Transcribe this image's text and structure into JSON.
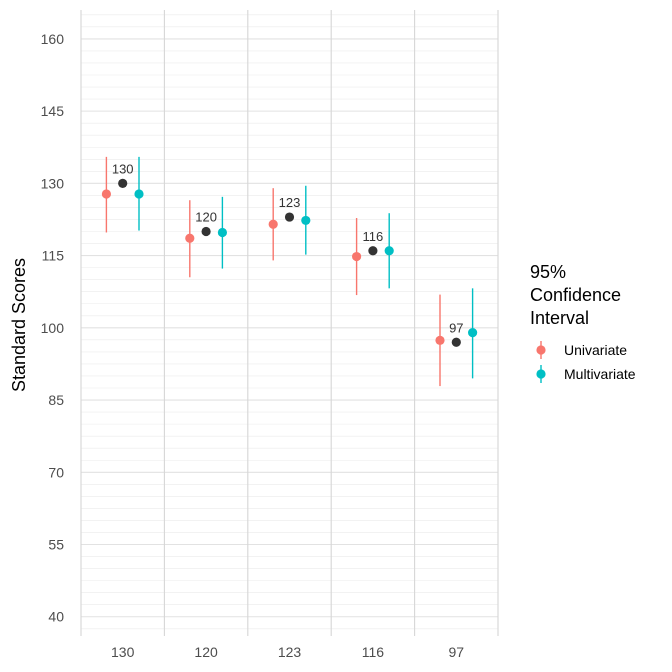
{
  "chart_data": {
    "type": "scatter",
    "title": "",
    "xlabel": "",
    "ylabel": "Standard Scores",
    "ylim": [
      36,
      166
    ],
    "y_ticks": [
      "40",
      "55",
      "70",
      "85",
      "100",
      "115",
      "130",
      "145",
      "160"
    ],
    "y_minor_grid_step": 2.5,
    "categories": [
      "130",
      "120",
      "123",
      "116",
      "97"
    ],
    "grid": true,
    "legend": {
      "title_lines": [
        "95%",
        "Confidence",
        "Interval"
      ],
      "placement": "right",
      "entries": [
        "Univariate",
        "Multivariate"
      ]
    },
    "observed": {
      "color": "#333333",
      "values": [
        130,
        120,
        123,
        116,
        97
      ],
      "labels": [
        "130",
        "120",
        "123",
        "116",
        "97"
      ]
    },
    "series": [
      {
        "name": "Univariate",
        "color": "#F8766D",
        "values": [
          127.8,
          118.6,
          121.5,
          114.8,
          97.4
        ],
        "lower": [
          119.8,
          110.5,
          114.0,
          106.8,
          87.9
        ],
        "upper": [
          135.5,
          126.5,
          129.0,
          122.8,
          106.9
        ]
      },
      {
        "name": "Multivariate",
        "color": "#00BFC4",
        "values": [
          127.8,
          119.8,
          122.3,
          116.0,
          99.0
        ],
        "lower": [
          120.2,
          112.3,
          115.2,
          108.2,
          89.5
        ],
        "upper": [
          135.5,
          127.2,
          129.5,
          123.8,
          108.2
        ]
      }
    ]
  }
}
